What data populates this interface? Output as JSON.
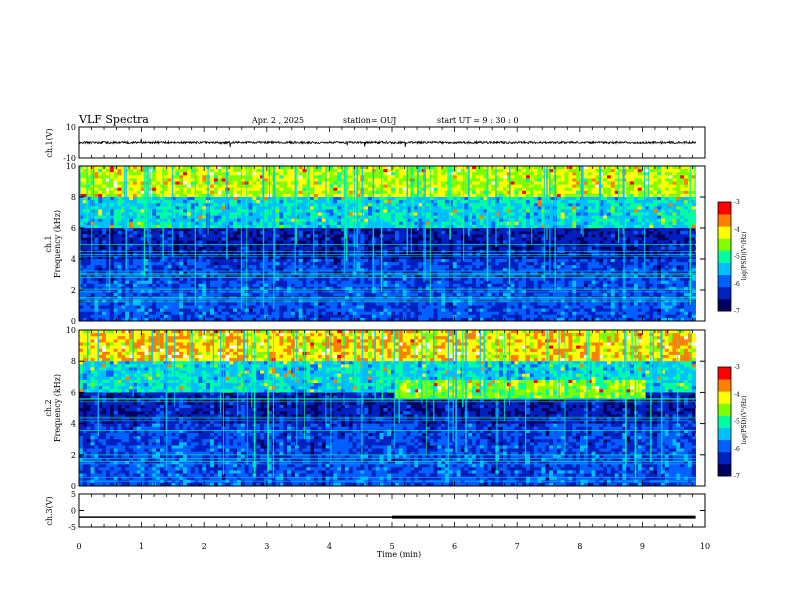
{
  "header": {
    "title": "VLF Spectra",
    "date": "Apr. 2 , 2025",
    "station": "station= OUJ",
    "start": "start  UT =  9 : 30 : 0"
  },
  "chart_data": [
    {
      "type": "line",
      "panel": "ch1",
      "ylabel": "ch.1(V)",
      "ylim": [
        -10,
        10
      ],
      "y_ticks": [
        "10",
        "-10"
      ],
      "xlim": [
        0,
        10
      ],
      "description_values": {
        "baseline": 0,
        "typical_amplitude": 1
      }
    },
    {
      "type": "heatmap",
      "panel": "spec1",
      "ylabel_line1": "ch.1",
      "ylabel_line2": "Frequency (kHz)",
      "ylim": [
        0,
        10
      ],
      "y_ticks": [
        "0",
        "2",
        "4",
        "6",
        "8",
        "10"
      ],
      "xlim": [
        0,
        10
      ],
      "colorbar": {
        "label": "log(PSD)(V²/Hz)",
        "range": [
          -7,
          -3
        ],
        "ticks": [
          "-3",
          "-4",
          "-5",
          "-6",
          "-7"
        ]
      },
      "colors": [
        "#000060",
        "#0020c0",
        "#0060ff",
        "#00c0ff",
        "#00ffa0",
        "#80ff00",
        "#ffff00",
        "#ff8000",
        "#ff0000",
        "#ffffff"
      ]
    },
    {
      "type": "heatmap",
      "panel": "spec2",
      "ylabel_line1": "ch.2",
      "ylabel_line2": "Frequency (kHz)",
      "ylim": [
        0,
        10
      ],
      "y_ticks": [
        "0",
        "2",
        "4",
        "6",
        "8",
        "10"
      ],
      "xlim": [
        0,
        10
      ],
      "colorbar": {
        "label": "log(PSD)(V²/Hz)",
        "range": [
          -7,
          -3
        ],
        "ticks": [
          "-3",
          "-4",
          "-5",
          "-6",
          "-7"
        ]
      },
      "colors": [
        "#000060",
        "#0020c0",
        "#0060ff",
        "#00c0ff",
        "#00ffa0",
        "#80ff00",
        "#ffff00",
        "#ff8000",
        "#ff0000",
        "#ffffff"
      ]
    },
    {
      "type": "line",
      "panel": "ch3",
      "ylabel": "ch.3(V)",
      "ylim": [
        -5,
        5
      ],
      "y_ticks": [
        "5",
        "0",
        "-5"
      ],
      "xlim": [
        0,
        10
      ],
      "xlabel": "Time (min)",
      "x_ticks": [
        "0",
        "1",
        "2",
        "3",
        "4",
        "5",
        "6",
        "7",
        "8",
        "9",
        "10"
      ],
      "series": [
        {
          "x": [
            0,
            5
          ],
          "y": [
            -2,
            -2
          ]
        },
        {
          "x": [
            5,
            9.85
          ],
          "y": [
            -2,
            -2
          ]
        }
      ]
    }
  ]
}
